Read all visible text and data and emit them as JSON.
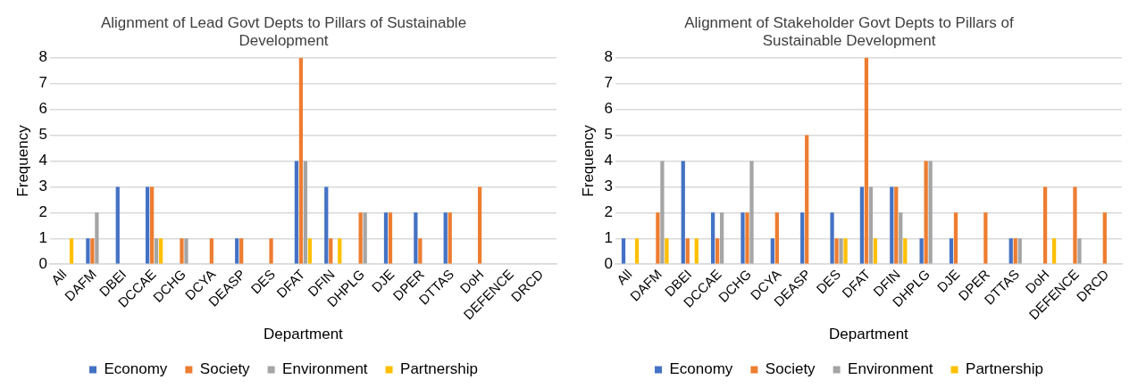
{
  "chart_data": [
    {
      "type": "bar",
      "title": "Alignment of Lead Govt Depts to Pillars of Sustainable Development",
      "xlabel": "Department",
      "ylabel": "Frequency",
      "categories": [
        "All",
        "DAFM",
        "DBEI",
        "DCCAE",
        "DCHG",
        "DCYA",
        "DEASP",
        "DES",
        "DFAT",
        "DFIN",
        "DHPLG",
        "DJE",
        "DPER",
        "DTTAS",
        "DoH",
        "DEFENCE",
        "DRCD"
      ],
      "ylim": [
        0,
        8
      ],
      "yticks": [
        0,
        1,
        2,
        3,
        4,
        5,
        6,
        7,
        8
      ],
      "grid": "y",
      "legend": "bottom",
      "series": [
        {
          "name": "Economy",
          "color": "#4472c4",
          "values": [
            0,
            1,
            3,
            3,
            0,
            0,
            1,
            0,
            4,
            3,
            0,
            2,
            2,
            2,
            0,
            0,
            0
          ]
        },
        {
          "name": "Society",
          "color": "#ed7d31",
          "values": [
            0,
            1,
            0,
            3,
            1,
            1,
            1,
            1,
            8,
            1,
            2,
            2,
            1,
            2,
            3,
            0,
            0
          ]
        },
        {
          "name": "Environment",
          "color": "#a5a5a5",
          "values": [
            0,
            2,
            0,
            1,
            1,
            0,
            0,
            0,
            4,
            0,
            2,
            0,
            0,
            0,
            0,
            0,
            0
          ]
        },
        {
          "name": "Partnership",
          "color": "#ffc000",
          "values": [
            1,
            0,
            0,
            1,
            0,
            0,
            0,
            0,
            1,
            1,
            0,
            0,
            0,
            0,
            0,
            0,
            0
          ]
        }
      ]
    },
    {
      "type": "bar",
      "title": "Alignment of Stakeholder Govt Depts to Pillars of Sustainable Development",
      "xlabel": "Department",
      "ylabel": "Frequency",
      "categories": [
        "All",
        "DAFM",
        "DBEI",
        "DCCAE",
        "DCHG",
        "DCYA",
        "DEASP",
        "DES",
        "DFAT",
        "DFIN",
        "DHPLG",
        "DJE",
        "DPER",
        "DTTAS",
        "DoH",
        "DEFENCE",
        "DRCD"
      ],
      "ylim": [
        0,
        8
      ],
      "yticks": [
        0,
        1,
        2,
        3,
        4,
        5,
        6,
        7,
        8
      ],
      "grid": "y",
      "legend": "bottom",
      "series": [
        {
          "name": "Economy",
          "color": "#4472c4",
          "values": [
            1,
            0,
            4,
            2,
            2,
            1,
            2,
            2,
            3,
            3,
            1,
            1,
            0,
            1,
            0,
            0,
            0
          ]
        },
        {
          "name": "Society",
          "color": "#ed7d31",
          "values": [
            0,
            2,
            1,
            1,
            2,
            2,
            5,
            1,
            8,
            3,
            4,
            2,
            2,
            1,
            3,
            3,
            2
          ]
        },
        {
          "name": "Environment",
          "color": "#a5a5a5",
          "values": [
            0,
            4,
            0,
            2,
            4,
            0,
            0,
            1,
            3,
            2,
            4,
            0,
            0,
            1,
            0,
            1,
            0
          ]
        },
        {
          "name": "Partnership",
          "color": "#ffc000",
          "values": [
            1,
            1,
            1,
            0,
            0,
            0,
            0,
            1,
            1,
            1,
            0,
            0,
            0,
            0,
            1,
            0,
            0
          ]
        }
      ]
    }
  ]
}
